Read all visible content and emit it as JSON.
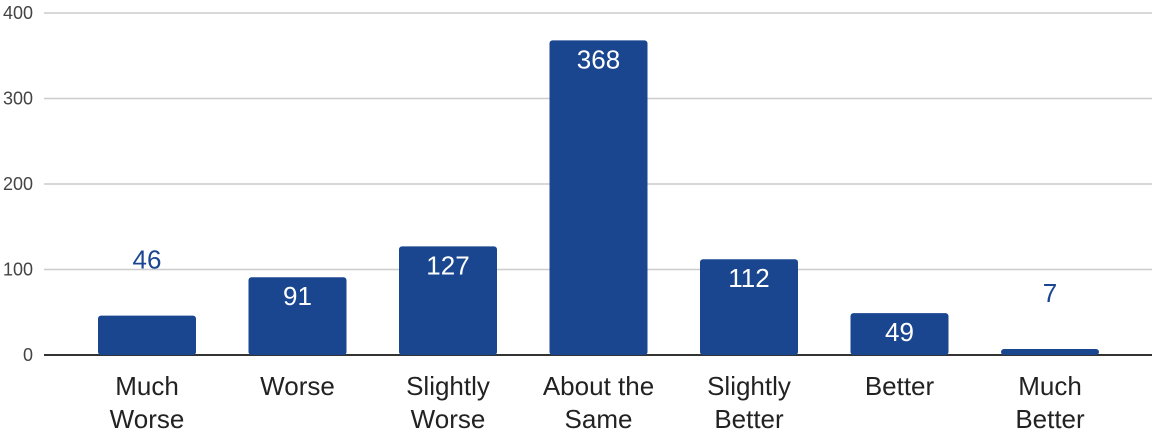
{
  "chart_data": {
    "type": "bar",
    "categories": [
      [
        "Much",
        "Worse"
      ],
      [
        "Worse"
      ],
      [
        "Slightly",
        "Worse"
      ],
      [
        "About the",
        "Same"
      ],
      [
        "Slightly",
        "Better"
      ],
      [
        "Better"
      ],
      [
        "Much",
        "Better"
      ]
    ],
    "values": [
      46,
      91,
      127,
      368,
      112,
      49,
      7
    ],
    "title": "",
    "xlabel": "",
    "ylabel": "",
    "ylim": [
      0,
      400
    ],
    "yticks": [
      0,
      100,
      200,
      300,
      400
    ],
    "grid": true,
    "legend": "none",
    "bar_color": "#1a4690",
    "label_inside_color": "#ffffff",
    "label_outside_color": "#1a4690"
  }
}
